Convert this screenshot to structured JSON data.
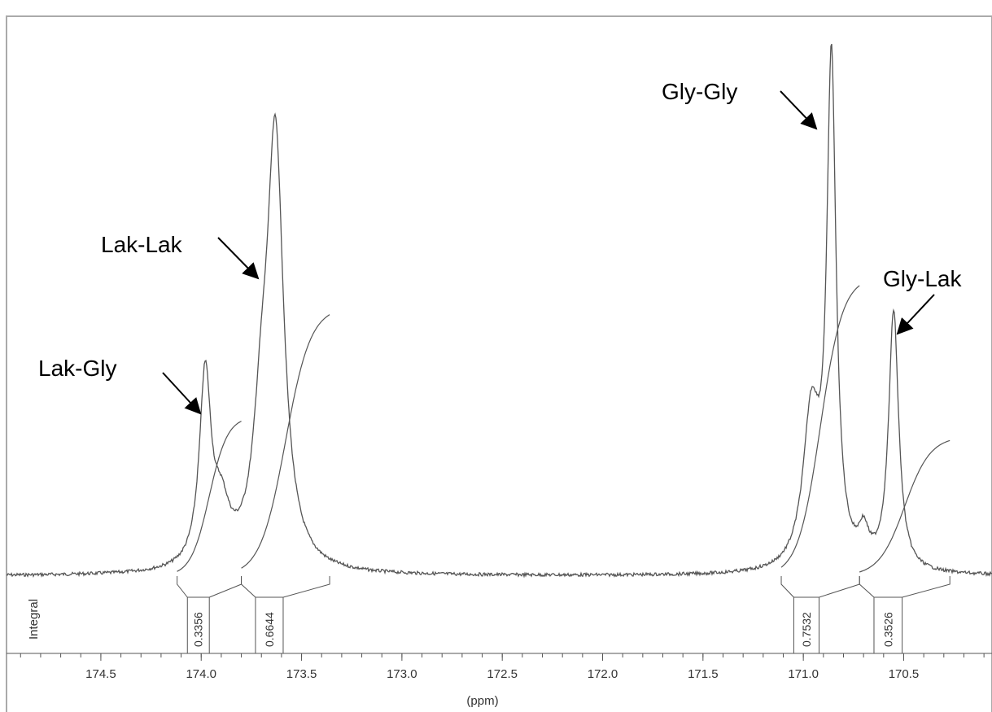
{
  "chart_data": {
    "type": "line",
    "title": "",
    "xlabel": "(ppm)",
    "ylabel": "",
    "x_reversed": true,
    "xlim": [
      174.97,
      170.06
    ],
    "ylim": [
      0,
      1
    ],
    "grid": false,
    "x_ticks": [
      174.5,
      174.0,
      173.5,
      173.0,
      172.5,
      172.0,
      171.5,
      171.0,
      170.5
    ],
    "x_tick_labels": [
      "174.5",
      "174.0",
      "173.5",
      "173.0",
      "172.5",
      "172.0",
      "171.5",
      "171.0",
      "170.5"
    ],
    "series": [
      {
        "kind": "spectrum",
        "peaks": [
          {
            "label": "Lak-Gly",
            "center_ppm": 173.98,
            "height": 0.38,
            "width_ppm": 0.035
          },
          {
            "label": "",
            "center_ppm": 173.9,
            "height": 0.1,
            "width_ppm": 0.05
          },
          {
            "label": "Lak-Lak",
            "center_ppm": 173.63,
            "height": 0.84,
            "width_ppm": 0.05
          },
          {
            "label": "",
            "center_ppm": 173.7,
            "height": 0.22,
            "width_ppm": 0.05
          },
          {
            "label": "Gly-Gly",
            "center_ppm": 170.86,
            "height": 1.0,
            "width_ppm": 0.028
          },
          {
            "label": "",
            "center_ppm": 170.96,
            "height": 0.3,
            "width_ppm": 0.05
          },
          {
            "label": "",
            "center_ppm": 170.7,
            "height": 0.06,
            "width_ppm": 0.03
          },
          {
            "label": "Gly-Lak",
            "center_ppm": 170.55,
            "height": 0.52,
            "width_ppm": 0.03
          }
        ]
      },
      {
        "kind": "integral-curves",
        "regions": [
          {
            "from_ppm": 174.12,
            "to_ppm": 173.8,
            "value": 0.3356
          },
          {
            "from_ppm": 173.8,
            "to_ppm": 173.36,
            "value": 0.6644
          },
          {
            "from_ppm": 171.11,
            "to_ppm": 170.72,
            "value": 0.7532
          },
          {
            "from_ppm": 170.72,
            "to_ppm": 170.27,
            "value": 0.3526
          }
        ]
      }
    ],
    "annotations": [
      {
        "text": "Lak-Gly",
        "peak_ppm": 173.98
      },
      {
        "text": "Lak-Lak",
        "peak_ppm": 173.63
      },
      {
        "text": "Gly-Gly",
        "peak_ppm": 170.86
      },
      {
        "text": "Gly-Lak",
        "peak_ppm": 170.55
      }
    ],
    "integral_axis_label": "Integral",
    "integral_values": [
      "0.3356",
      "0.6644",
      "0.7532",
      "0.3526"
    ]
  },
  "colors": {
    "line": "#555555",
    "frame": "#aaaaaa",
    "text": "#000000",
    "tick_text": "#333333"
  }
}
